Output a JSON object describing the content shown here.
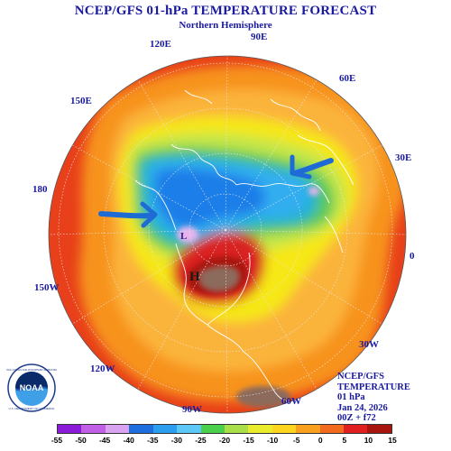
{
  "header": {
    "title": "NCEP/GFS 01-hPa TEMPERATURE FORECAST",
    "subtitle": "Northern Hemisphere"
  },
  "map": {
    "projection": "polar-stereographic",
    "hemisphere": "north",
    "longitude_labels": [
      "120E",
      "90E",
      "60E",
      "150E",
      "30E",
      "180",
      "0",
      "150W",
      "30W",
      "120W",
      "60W",
      "90W"
    ],
    "colors": {
      "ring": "#e8401a",
      "orange": "#f7931e",
      "gold": "#fbb43a",
      "yellow": "#f6e716",
      "lightgreen": "#c4e64a",
      "green": "#5cc85a",
      "teal": "#1fb4cf",
      "lightblue": "#33aef0",
      "blue": "#1f7ee8",
      "lavender": "#e6b3ee",
      "red": "#d92020",
      "darkred": "#a8150f",
      "brown": "#8c6b5c",
      "arrow": "#1f6bd6",
      "grid": "#e8e8e8"
    },
    "markers": {
      "high": "H",
      "low": "L"
    },
    "arrows": [
      {
        "name": "left-arrow",
        "direction": "east"
      },
      {
        "name": "right-arrow",
        "direction": "west"
      }
    ]
  },
  "info": {
    "line1": "NCEP/GFS",
    "line2": "TEMPERATURE",
    "line3": "01 hPa",
    "line4": "Jan 24, 2026",
    "line5": "00Z + f72"
  },
  "logo": {
    "text": "NOAA",
    "ring_text_top": "NATIONAL OCEANIC AND ATMOSPHERIC ADMINISTRATION",
    "ring_text_bottom": "U.S. DEPARTMENT OF COMMERCE"
  },
  "colorbar": {
    "ticks": [
      "-55",
      "-50",
      "-45",
      "-40",
      "-35",
      "-30",
      "-25",
      "-20",
      "-15",
      "-10",
      "-5",
      "0",
      "5",
      "10",
      "15"
    ],
    "colors": [
      "#8b1ad9",
      "#c15fe6",
      "#d9a3f0",
      "#1f6ee0",
      "#2b9ef0",
      "#5cc8f5",
      "#4ad04a",
      "#a9e04a",
      "#e8ec2a",
      "#fbd51e",
      "#f9a11e",
      "#f26a1b",
      "#e02020",
      "#a8150f"
    ]
  }
}
